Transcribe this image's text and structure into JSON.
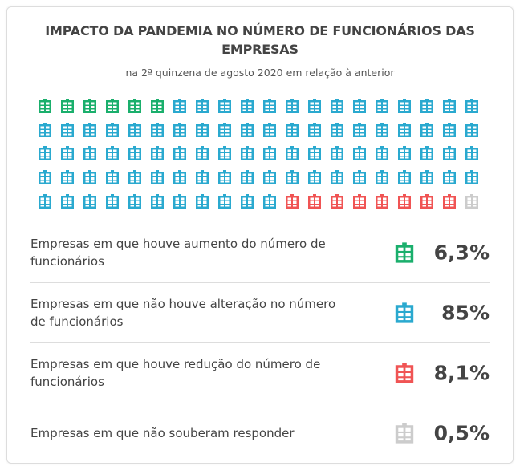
{
  "title": "IMPACTO DA PANDEMIA NO NÚMERO DE FUNCIONÁRIOS DAS EMPRESAS",
  "subtitle": "na 2ª quinzena de agosto 2020 em relação à anterior",
  "chart_data": {
    "type": "waffle",
    "title": "IMPACTO DA PANDEMIA NO NÚMERO DE FUNCIONÁRIOS DAS EMPRESAS",
    "subtitle": "na 2ª quinzena de agosto 2020 em relação à anterior",
    "grid": {
      "columns": 20,
      "rows": 5
    },
    "series": [
      {
        "label": "Empresas em que houve aumento do número de funcionários",
        "value_label": "6,3%",
        "value": 6.3,
        "icons": 6,
        "color": "#1aaf6c"
      },
      {
        "label": "Empresas em que não houve alteração no número de funcionários",
        "value_label": "85%",
        "value": 85,
        "icons": 85,
        "color": "#2aa9cf"
      },
      {
        "label": "Empresas em que houve redução do número de funcionários",
        "value_label": "8,1%",
        "value": 8.1,
        "icons": 8,
        "color": "#f05454"
      },
      {
        "label": "Empresas em que não souberam responder",
        "value_label": "0,5%",
        "value": 0.5,
        "icons": 1,
        "color": "#cccccc"
      }
    ]
  }
}
